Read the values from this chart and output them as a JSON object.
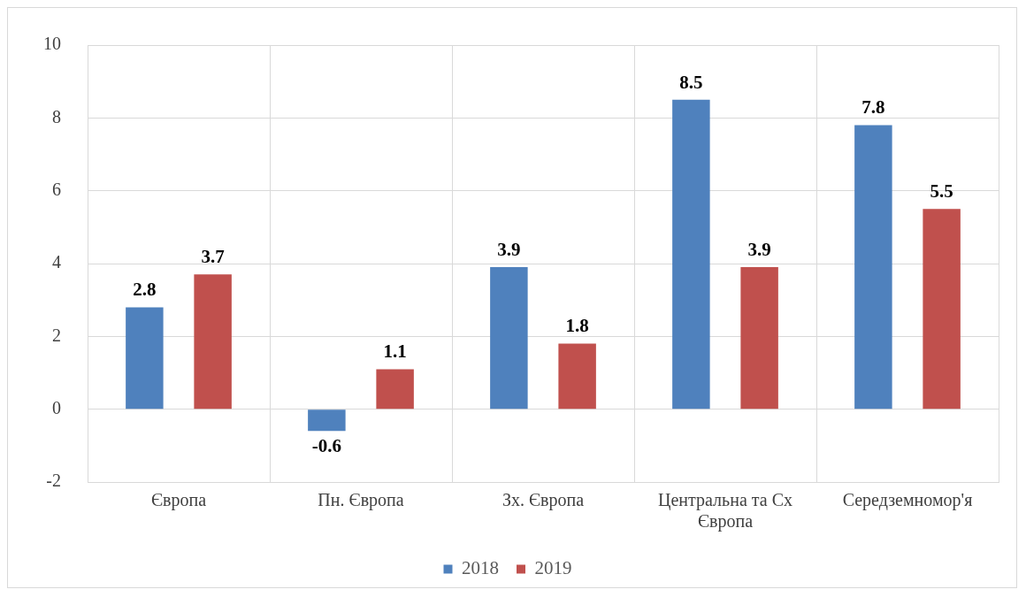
{
  "chart_data": {
    "type": "bar",
    "categories": [
      "Європа",
      "Пн. Європа",
      "Зх. Європа",
      "Центральна та Сх Європа",
      "Середземномор'я"
    ],
    "series": [
      {
        "name": "2018",
        "color": "#4f81bd",
        "values": [
          2.8,
          -0.6,
          3.9,
          8.5,
          7.8
        ]
      },
      {
        "name": "2019",
        "color": "#c0504d",
        "values": [
          3.7,
          1.1,
          1.8,
          3.9,
          5.5
        ]
      }
    ],
    "ylim": [
      -2,
      10
    ],
    "yticks": [
      -2,
      0,
      2,
      4,
      6,
      8,
      10
    ],
    "grid": true,
    "legend": "bottom",
    "data_labels": true
  }
}
